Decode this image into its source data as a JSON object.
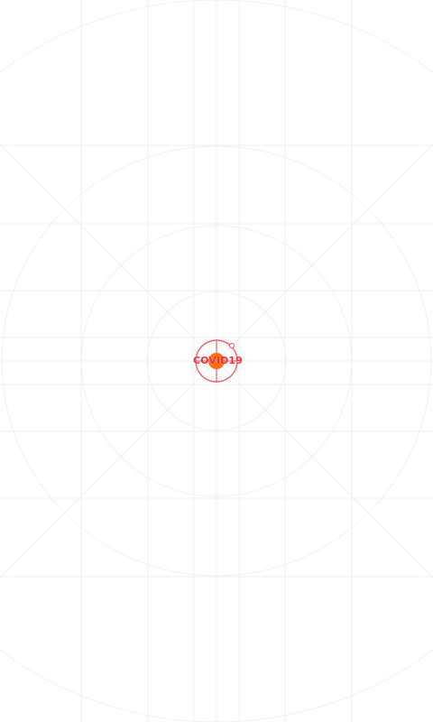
{
  "screen": {
    "background": "#ffffff",
    "guide_color": "#eef1f3"
  },
  "app": {
    "label": "COVID19",
    "icon": "target-crosshair-icon",
    "accent": "#ef2f35",
    "dot": "#ff6a13"
  }
}
